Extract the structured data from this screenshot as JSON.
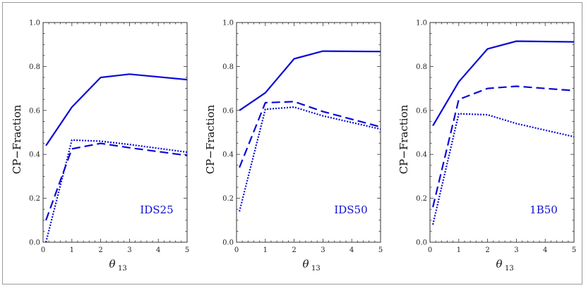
{
  "chart_data": [
    {
      "type": "line",
      "annotation": "IDS25",
      "ylabel": "CP−Fraction",
      "xlabel_main": "θ",
      "xlabel_sub": "13",
      "xlim": [
        0,
        5
      ],
      "ylim": [
        0,
        1
      ],
      "xticks": [
        "0",
        "1",
        "2",
        "3",
        "4",
        "5"
      ],
      "yticks": [
        "0.0",
        "0.2",
        "0.4",
        "0.6",
        "0.8",
        "1.0"
      ],
      "x": [
        0.1,
        1,
        2,
        3,
        5
      ],
      "series": [
        {
          "style": "solid",
          "values": [
            0.44,
            0.615,
            0.75,
            0.765,
            0.74
          ]
        },
        {
          "style": "dashed",
          "values": [
            0.1,
            0.425,
            0.45,
            0.43,
            0.395
          ]
        },
        {
          "style": "dotted",
          "values": [
            0.0,
            0.465,
            0.46,
            0.445,
            0.41
          ]
        }
      ]
    },
    {
      "type": "line",
      "annotation": "IDS50",
      "ylabel": "CP−Fraction",
      "xlabel_main": "θ",
      "xlabel_sub": "13",
      "xlim": [
        0,
        5
      ],
      "ylim": [
        0,
        1
      ],
      "xticks": [
        "0",
        "1",
        "2",
        "3",
        "4",
        "5"
      ],
      "yticks": [
        "0.0",
        "0.2",
        "0.4",
        "0.6",
        "0.8",
        "1.0"
      ],
      "x": [
        0.1,
        1,
        2,
        3,
        5
      ],
      "series": [
        {
          "style": "solid",
          "values": [
            0.6,
            0.68,
            0.835,
            0.87,
            0.868
          ]
        },
        {
          "style": "dashed",
          "values": [
            0.34,
            0.635,
            0.64,
            0.595,
            0.525
          ]
        },
        {
          "style": "dotted",
          "values": [
            0.14,
            0.605,
            0.615,
            0.575,
            0.515
          ]
        }
      ]
    },
    {
      "type": "line",
      "annotation": "1B50",
      "ylabel": "CP−Fraction",
      "xlabel_main": "θ",
      "xlabel_sub": "13",
      "xlim": [
        0,
        5
      ],
      "ylim": [
        0,
        1
      ],
      "xticks": [
        "0",
        "1",
        "2",
        "3",
        "4",
        "5"
      ],
      "yticks": [
        "0.0",
        "0.2",
        "0.4",
        "0.6",
        "0.8",
        "1.0"
      ],
      "x": [
        0.1,
        1,
        2,
        3,
        5
      ],
      "series": [
        {
          "style": "solid",
          "values": [
            0.53,
            0.73,
            0.88,
            0.915,
            0.912
          ]
        },
        {
          "style": "dashed",
          "values": [
            0.16,
            0.65,
            0.7,
            0.71,
            0.69
          ]
        },
        {
          "style": "dotted",
          "values": [
            0.08,
            0.585,
            0.58,
            0.54,
            0.48
          ]
        }
      ]
    }
  ]
}
